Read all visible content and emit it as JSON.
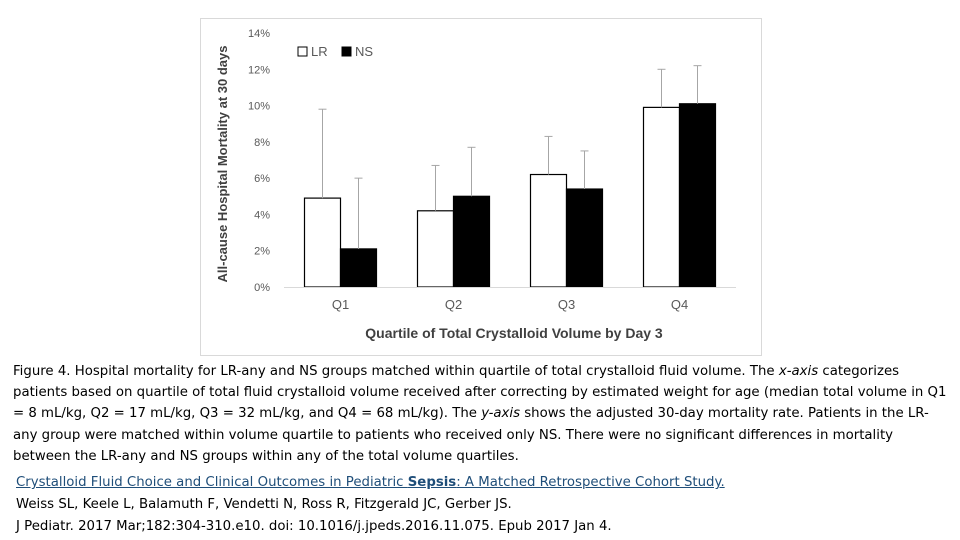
{
  "chart_data": {
    "type": "bar",
    "title": "",
    "xlabel": "Quartile of Total Crystalloid Volume by Day 3",
    "ylabel": "All-cause Hospital Mortality at 30 days",
    "categories": [
      "Q1",
      "Q2",
      "Q3",
      "Q4"
    ],
    "yticks": [
      "0%",
      "2%",
      "4%",
      "6%",
      "8%",
      "10%",
      "12%",
      "14%"
    ],
    "ylim": [
      0,
      14
    ],
    "grid": false,
    "legend_position": "top-left",
    "series": [
      {
        "name": "LR",
        "color": "#ffffff",
        "values": [
          4.9,
          4.2,
          6.2,
          9.9
        ],
        "error_upper": [
          9.8,
          6.7,
          8.3,
          12.0
        ]
      },
      {
        "name": "NS",
        "color": "#000000",
        "values": [
          2.1,
          5.0,
          5.4,
          10.1
        ],
        "error_upper": [
          6.0,
          7.7,
          7.5,
          12.2
        ]
      }
    ]
  },
  "caption": {
    "p1": "Figure 4. Hospital mortality for LR-any and NS groups matched within quartile of total crystalloid fluid volume. The ",
    "x_axis": "x-axis",
    "p2": " categorizes patients based on quartile of total fluid crystalloid volume received after correcting by estimated weight for age (median total volume in Q1 = 8 mL/kg, Q2 = 17 mL/kg, Q3 = 32 mL/kg, and Q4 = 68 mL/kg). The ",
    "y_axis": "y-axis",
    "p3": " shows the adjusted 30-day mortality rate. Patients in the LR-any group were matched within volume quartile to patients who received only NS. There were no significant differences in mortality between the LR-any and NS groups within any of the total volume quartiles."
  },
  "citation": {
    "title_a": "Crystalloid Fluid Choice and Clinical Outcomes in Pediatric ",
    "title_b": "Sepsis",
    "title_c": ": A Matched Retrospective Cohort Study.",
    "authors": "Weiss SL, Keele L, Balamuth F, Vendetti N, Ross R, Fitzgerald JC, Gerber JS.",
    "journal": "J Pediatr. 2017 Mar;182:304-310.e10. doi: 10.1016/j.jpeds.2016.11.075. Epub 2017 Jan 4."
  }
}
